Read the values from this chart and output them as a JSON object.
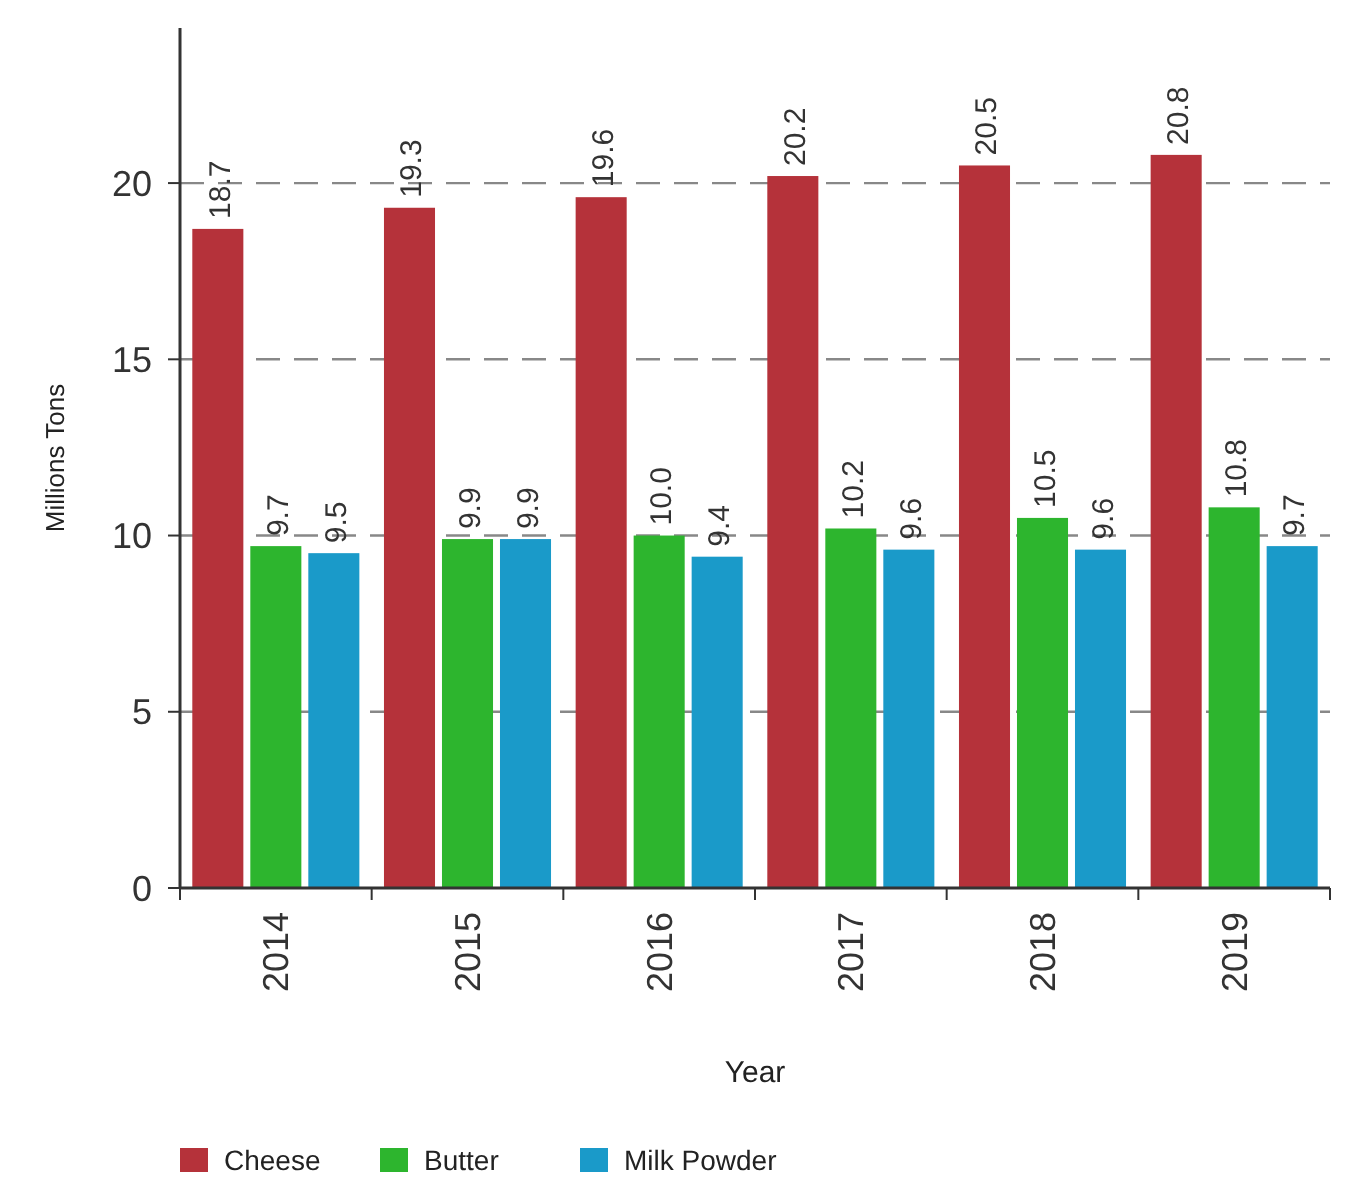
{
  "chart_data": {
    "type": "bar",
    "xlabel": "Year",
    "ylabel": "Millions Tons",
    "categories": [
      "2014",
      "2015",
      "2016",
      "2017",
      "2018",
      "2019"
    ],
    "series": [
      {
        "name": "Cheese",
        "color": "#b5323a",
        "values": [
          18.7,
          19.3,
          19.6,
          20.2,
          20.5,
          20.8
        ],
        "value_labels": [
          "18.7",
          "19.3",
          "19.6",
          "20.2",
          "20.5",
          "20.8"
        ]
      },
      {
        "name": "Butter",
        "color": "#2db52e",
        "values": [
          9.7,
          9.9,
          10.0,
          10.2,
          10.5,
          10.8
        ],
        "value_labels": [
          "9.7",
          "9.9",
          "10.0",
          "10.2",
          "10.5",
          "10.8"
        ]
      },
      {
        "name": "Milk Powder",
        "color": "#1a9ac9",
        "values": [
          9.5,
          9.9,
          9.4,
          9.6,
          9.6,
          9.7
        ],
        "value_labels": [
          "9.5",
          "9.9",
          "9.4",
          "9.6",
          "9.6",
          "9.7"
        ]
      }
    ],
    "ylim": [
      0,
      24.4
    ],
    "yticks": [
      0,
      5,
      10,
      15,
      20
    ],
    "grid": "y",
    "legend": "bottom"
  }
}
